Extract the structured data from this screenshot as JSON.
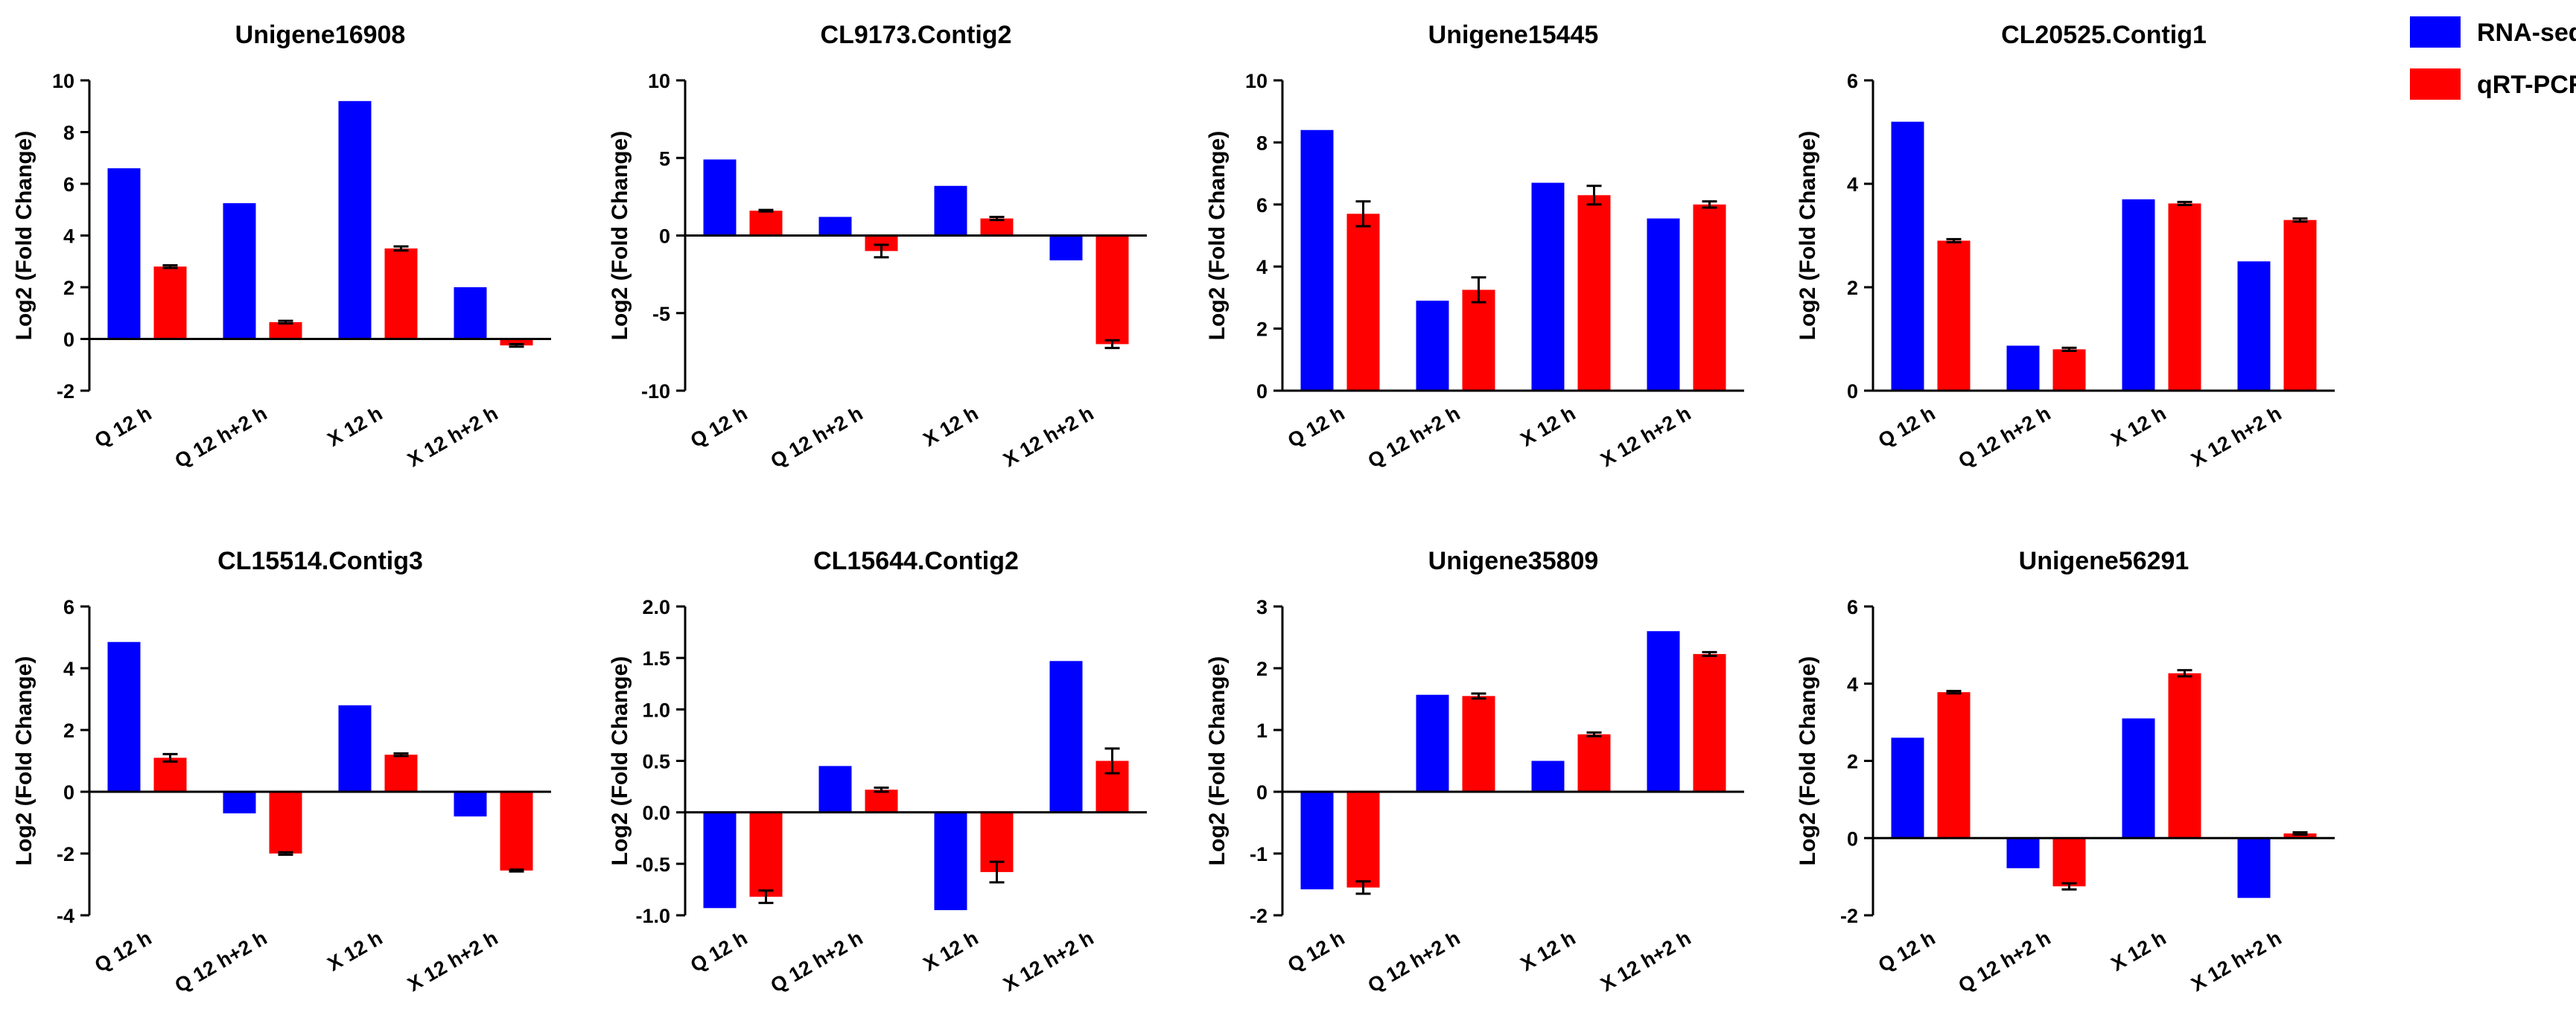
{
  "legend": [
    {
      "label": "RNA-seq",
      "color": "#0000FF"
    },
    {
      "label": "qRT-PCR",
      "color": "#FF0000"
    }
  ],
  "chart_data": [
    {
      "type": "bar",
      "title": "Unigene16908",
      "ylabel": "Log2 (Fold Change)",
      "categories": [
        "Q 12 h",
        "Q 12 h+2 h",
        "X 12 h",
        "X 12 h+2 h"
      ],
      "yticks": [
        "-2",
        "0",
        "2",
        "4",
        "6",
        "8",
        "10"
      ],
      "ylim": [
        -2,
        10
      ],
      "series": [
        {
          "name": "RNA-seq",
          "values": [
            6.6,
            5.25,
            9.2,
            2.0
          ],
          "errors": [
            0,
            0,
            0,
            0
          ]
        },
        {
          "name": "qRT-PCR",
          "values": [
            2.8,
            0.65,
            3.5,
            -0.25
          ],
          "errors": [
            0.05,
            0.05,
            0.08,
            0.05
          ]
        }
      ]
    },
    {
      "type": "bar",
      "title": "CL9173.Contig2",
      "ylabel": "Log2 (Fold Change)",
      "categories": [
        "Q 12 h",
        "Q 12 h+2 h",
        "X 12 h",
        "X 12 h+2 h"
      ],
      "yticks": [
        "-10",
        "-5",
        "0",
        "5",
        "10"
      ],
      "ylim": [
        -10,
        10
      ],
      "series": [
        {
          "name": "RNA-seq",
          "values": [
            4.9,
            1.2,
            3.2,
            -1.6
          ],
          "errors": [
            0,
            0,
            0,
            0
          ]
        },
        {
          "name": "qRT-PCR",
          "values": [
            1.6,
            -1.0,
            1.1,
            -7.0
          ],
          "errors": [
            0.05,
            0.4,
            0.1,
            0.25
          ]
        }
      ]
    },
    {
      "type": "bar",
      "title": "Unigene15445",
      "ylabel": "Log2 (Fold Change)",
      "categories": [
        "Q 12 h",
        "Q 12 h+2 h",
        "X 12 h",
        "X 12 h+2 h"
      ],
      "yticks": [
        "0",
        "2",
        "4",
        "6",
        "8",
        "10"
      ],
      "ylim": [
        0,
        10
      ],
      "series": [
        {
          "name": "RNA-seq",
          "values": [
            8.4,
            2.9,
            6.7,
            5.55
          ],
          "errors": [
            0,
            0,
            0,
            0
          ]
        },
        {
          "name": "qRT-PCR",
          "values": [
            5.7,
            3.25,
            6.3,
            6.0
          ],
          "errors": [
            0.4,
            0.4,
            0.3,
            0.1
          ]
        }
      ]
    },
    {
      "type": "bar",
      "title": "CL20525.Contig1",
      "ylabel": "Log2 (Fold Change)",
      "categories": [
        "Q 12 h",
        "Q 12 h+2 h",
        "X 12 h",
        "X 12 h+2 h"
      ],
      "yticks": [
        "0",
        "2",
        "4",
        "6"
      ],
      "ylim": [
        0,
        6
      ],
      "series": [
        {
          "name": "RNA-seq",
          "values": [
            5.2,
            0.87,
            3.7,
            2.5
          ],
          "errors": [
            0,
            0,
            0,
            0
          ]
        },
        {
          "name": "qRT-PCR",
          "values": [
            2.9,
            0.8,
            3.62,
            3.3
          ],
          "errors": [
            0.03,
            0.03,
            0.03,
            0.03
          ]
        }
      ]
    },
    {
      "type": "bar",
      "title": "CL15514.Contig3",
      "ylabel": "Log2 (Fold Change)",
      "categories": [
        "Q 12 h",
        "Q 12 h+2 h",
        "X 12 h",
        "X 12 h+2 h"
      ],
      "yticks": [
        "-4",
        "-2",
        "0",
        "2",
        "4",
        "6"
      ],
      "ylim": [
        -4,
        6
      ],
      "series": [
        {
          "name": "RNA-seq",
          "values": [
            4.85,
            -0.7,
            2.8,
            -0.8
          ],
          "errors": [
            0,
            0,
            0,
            0
          ]
        },
        {
          "name": "qRT-PCR",
          "values": [
            1.1,
            -2.0,
            1.2,
            -2.55
          ],
          "errors": [
            0.12,
            0.04,
            0.04,
            0.03
          ]
        }
      ]
    },
    {
      "type": "bar",
      "title": "CL15644.Contig2",
      "ylabel": "Log2 (Fold Change)",
      "categories": [
        "Q 12 h",
        "Q 12 h+2 h",
        "X 12 h",
        "X 12 h+2 h"
      ],
      "yticks": [
        "-1.0",
        "-0.5",
        "0.0",
        "0.5",
        "1.0",
        "1.5",
        "2.0"
      ],
      "ylim": [
        -1,
        2
      ],
      "series": [
        {
          "name": "RNA-seq",
          "values": [
            -0.93,
            0.45,
            -0.95,
            1.47
          ],
          "errors": [
            0,
            0,
            0,
            0
          ]
        },
        {
          "name": "qRT-PCR",
          "values": [
            -0.82,
            0.22,
            -0.58,
            0.5
          ],
          "errors": [
            0.06,
            0.02,
            0.1,
            0.12
          ]
        }
      ]
    },
    {
      "type": "bar",
      "title": "Unigene35809",
      "ylabel": "Log2 (Fold Change)",
      "categories": [
        "Q 12 h",
        "Q 12 h+2 h",
        "X 12 h",
        "X 12 h+2 h"
      ],
      "yticks": [
        "-2",
        "-1",
        "0",
        "1",
        "2",
        "3"
      ],
      "ylim": [
        -2,
        3
      ],
      "series": [
        {
          "name": "RNA-seq",
          "values": [
            -1.58,
            1.57,
            0.5,
            2.6
          ],
          "errors": [
            0,
            0,
            0,
            0
          ]
        },
        {
          "name": "qRT-PCR",
          "values": [
            -1.55,
            1.55,
            0.93,
            2.23
          ],
          "errors": [
            0.1,
            0.04,
            0.03,
            0.03
          ]
        }
      ]
    },
    {
      "type": "bar",
      "title": "Unigene56291",
      "ylabel": "Log2 (Fold Change)",
      "categories": [
        "Q 12 h",
        "Q 12 h+2 h",
        "X 12 h",
        "X 12 h+2 h"
      ],
      "yticks": [
        "-2",
        "0",
        "2",
        "4",
        "6"
      ],
      "ylim": [
        -2,
        6
      ],
      "series": [
        {
          "name": "RNA-seq",
          "values": [
            2.6,
            -0.78,
            3.1,
            -1.55
          ],
          "errors": [
            0,
            0,
            0,
            0
          ]
        },
        {
          "name": "qRT-PCR",
          "values": [
            3.78,
            -1.25,
            4.27,
            0.12
          ],
          "errors": [
            0.03,
            0.08,
            0.08,
            0.03
          ]
        }
      ]
    }
  ]
}
